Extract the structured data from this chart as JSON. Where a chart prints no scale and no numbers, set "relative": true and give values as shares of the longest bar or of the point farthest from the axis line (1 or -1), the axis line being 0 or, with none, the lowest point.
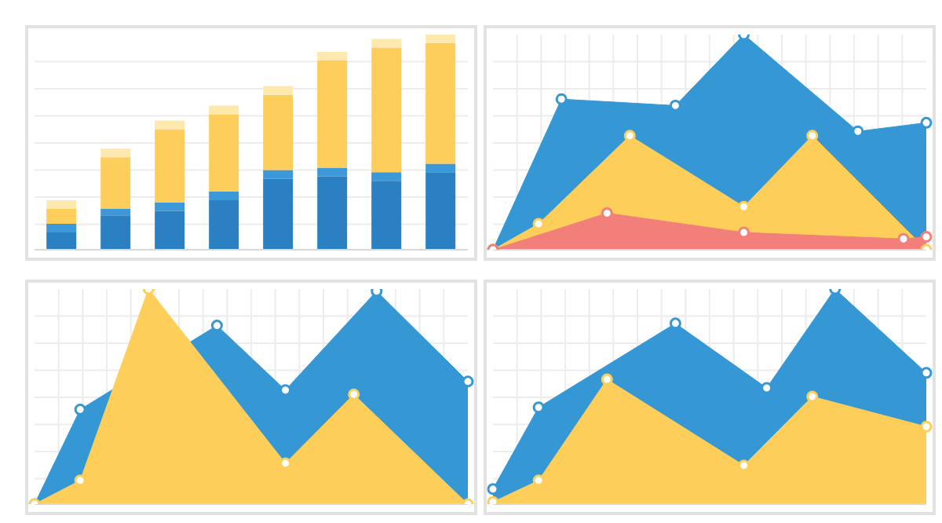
{
  "chart_data": [
    {
      "type": "bar",
      "stacked": true,
      "relative": true,
      "grid": "y",
      "categories": [
        null,
        null,
        null,
        null,
        null,
        null,
        null,
        null
      ],
      "series": [
        {
          "color": "#2a80c0",
          "values": [
            0.08,
            0.16,
            0.18,
            0.23,
            0.33,
            0.34,
            0.32,
            0.36
          ]
        },
        {
          "color": "#3d98d8",
          "values": [
            0.04,
            0.03,
            0.04,
            0.04,
            0.04,
            0.04,
            0.04,
            0.04
          ]
        },
        {
          "color": "#fdce5c",
          "values": [
            0.07,
            0.24,
            0.34,
            0.36,
            0.35,
            0.5,
            0.58,
            0.56
          ]
        },
        {
          "color": "#fde8ae",
          "values": [
            0.04,
            0.04,
            0.04,
            0.04,
            0.04,
            0.04,
            0.04,
            0.04
          ]
        }
      ]
    },
    {
      "type": "area",
      "relative": true,
      "grid": true,
      "marker": "circle",
      "categories": [
        null,
        null,
        null,
        null,
        null,
        null,
        null,
        null,
        null,
        null,
        null,
        null,
        null,
        null,
        null,
        null,
        null,
        null,
        null,
        null
      ],
      "series": [
        {
          "color": "#3598d5",
          "values": [
            0,
            null,
            null,
            0.7,
            null,
            null,
            null,
            null,
            0.67,
            null,
            null,
            1,
            null,
            null,
            null,
            null,
            0.55,
            null,
            null,
            0.59
          ]
        },
        {
          "color": "#fdcf5a",
          "values": [
            0,
            null,
            0.12,
            null,
            null,
            null,
            0.53,
            null,
            null,
            null,
            null,
            0.2,
            null,
            null,
            0.53,
            null,
            null,
            null,
            null,
            0
          ]
        },
        {
          "color": "#f27f7a",
          "values": [
            0,
            null,
            null,
            null,
            null,
            0.17,
            null,
            null,
            null,
            null,
            null,
            0.08,
            null,
            null,
            null,
            null,
            null,
            null,
            0.05,
            0.06
          ]
        }
      ]
    },
    {
      "type": "area",
      "relative": true,
      "grid": true,
      "marker": "circle",
      "categories": [
        null,
        null,
        null,
        null,
        null,
        null,
        null,
        null,
        null,
        null,
        null,
        null,
        null,
        null,
        null,
        null,
        null,
        null,
        null,
        null
      ],
      "series": [
        {
          "color": "#3598d5",
          "values": [
            0,
            null,
            0.44,
            null,
            null,
            null,
            null,
            null,
            0.83,
            null,
            null,
            0.53,
            null,
            null,
            null,
            0.99,
            null,
            null,
            null,
            0.57
          ]
        },
        {
          "color": "#fdcf5a",
          "values": [
            0,
            null,
            0.11,
            null,
            null,
            1,
            null,
            null,
            null,
            null,
            null,
            0.19,
            null,
            null,
            0.51,
            null,
            null,
            null,
            null,
            0
          ]
        }
      ]
    },
    {
      "type": "area",
      "relative": true,
      "grid": true,
      "marker": "circle",
      "categories": [
        null,
        null,
        null,
        null,
        null,
        null,
        null,
        null,
        null,
        null,
        null,
        null,
        null,
        null,
        null,
        null,
        null,
        null,
        null,
        null
      ],
      "series": [
        {
          "color": "#3598d5",
          "values": [
            0.07,
            null,
            0.45,
            null,
            null,
            null,
            null,
            null,
            0.84,
            null,
            null,
            null,
            0.54,
            null,
            null,
            1,
            null,
            null,
            null,
            0.61
          ]
        },
        {
          "color": "#fdcf5a",
          "values": [
            0.01,
            null,
            0.11,
            null,
            null,
            0.58,
            null,
            null,
            null,
            null,
            null,
            0.18,
            null,
            null,
            0.5,
            null,
            null,
            null,
            null,
            0.36
          ]
        }
      ]
    }
  ]
}
